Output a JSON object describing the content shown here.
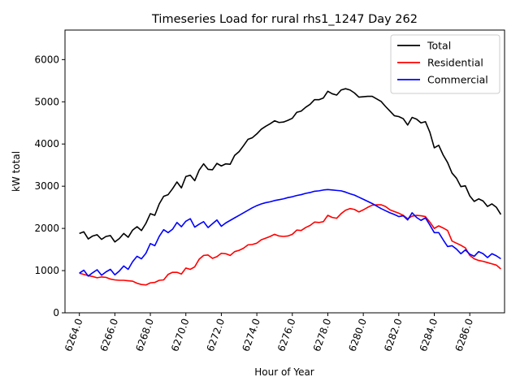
{
  "chart_data": {
    "type": "line",
    "title": "Timeseries Load for rural rhs1_1247  Day 262",
    "xlabel": "Hour of Year",
    "ylabel": "kW total",
    "xlim": [
      6263.19,
      6287.96
    ],
    "ylim": [
      0,
      6700
    ],
    "x_ticks": [
      6264,
      6266,
      6268,
      6270,
      6272,
      6274,
      6276,
      6278,
      6280,
      6282,
      6284,
      6286
    ],
    "x_tick_labels": [
      "6264.0",
      "6266.0",
      "6268.0",
      "6270.0",
      "6272.0",
      "6274.0",
      "6276.0",
      "6278.0",
      "6280.0",
      "6282.0",
      "6284.0",
      "6286.0"
    ],
    "y_ticks": [
      0,
      1000,
      2000,
      3000,
      4000,
      5000,
      6000
    ],
    "y_tick_labels": [
      "0",
      "1000",
      "2000",
      "3000",
      "4000",
      "5000",
      "6000"
    ],
    "grid": false,
    "legend_position": "top-right",
    "x": [
      6264,
      6264.25,
      6264.5,
      6264.75,
      6265,
      6265.25,
      6265.5,
      6265.75,
      6266,
      6266.25,
      6266.5,
      6266.75,
      6267,
      6267.25,
      6267.5,
      6267.75,
      6268,
      6268.25,
      6268.5,
      6268.75,
      6269,
      6269.25,
      6269.5,
      6269.75,
      6270,
      6270.25,
      6270.5,
      6270.75,
      6271,
      6271.25,
      6271.5,
      6271.75,
      6272,
      6272.25,
      6272.5,
      6272.75,
      6273,
      6273.25,
      6273.5,
      6273.75,
      6274,
      6274.25,
      6274.5,
      6274.75,
      6275,
      6275.25,
      6275.5,
      6275.75,
      6276,
      6276.25,
      6276.5,
      6276.75,
      6277,
      6277.25,
      6277.5,
      6277.75,
      6278,
      6278.25,
      6278.5,
      6278.75,
      6279,
      6279.25,
      6279.5,
      6279.75,
      6280,
      6280.25,
      6280.5,
      6280.75,
      6281,
      6281.25,
      6281.5,
      6281.75,
      6282,
      6282.25,
      6282.5,
      6282.75,
      6283,
      6283.25,
      6283.5,
      6283.75,
      6284,
      6284.25,
      6284.5,
      6284.75,
      6285,
      6285.25,
      6285.5,
      6285.75,
      6286,
      6286.25,
      6286.5,
      6286.75,
      6287,
      6287.25,
      6287.5,
      6287.75
    ],
    "series": [
      {
        "name": "Total",
        "color": "#000000",
        "values": [
          1880,
          1920,
          1750,
          1820,
          1850,
          1740,
          1810,
          1830,
          1680,
          1760,
          1880,
          1790,
          1960,
          2040,
          1950,
          2120,
          2350,
          2310,
          2580,
          2760,
          2800,
          2940,
          3100,
          2960,
          3230,
          3260,
          3130,
          3380,
          3530,
          3400,
          3390,
          3540,
          3480,
          3530,
          3520,
          3730,
          3820,
          3960,
          4110,
          4150,
          4240,
          4350,
          4420,
          4480,
          4550,
          4510,
          4520,
          4560,
          4610,
          4750,
          4780,
          4870,
          4940,
          5050,
          5050,
          5090,
          5250,
          5190,
          5160,
          5280,
          5310,
          5280,
          5210,
          5110,
          5120,
          5130,
          5130,
          5070,
          5010,
          4890,
          4780,
          4670,
          4650,
          4600,
          4450,
          4630,
          4590,
          4500,
          4530,
          4280,
          3910,
          3970,
          3740,
          3560,
          3310,
          3190,
          2990,
          3010,
          2770,
          2640,
          2700,
          2650,
          2520,
          2580,
          2500,
          2330
        ]
      },
      {
        "name": "Residential",
        "color": "#ff0000",
        "values": [
          940,
          910,
          880,
          860,
          830,
          850,
          840,
          800,
          780,
          770,
          770,
          760,
          750,
          700,
          670,
          660,
          710,
          720,
          770,
          780,
          910,
          960,
          960,
          920,
          1060,
          1030,
          1090,
          1270,
          1360,
          1370,
          1290,
          1330,
          1410,
          1400,
          1360,
          1450,
          1480,
          1530,
          1610,
          1620,
          1650,
          1730,
          1770,
          1810,
          1860,
          1820,
          1810,
          1820,
          1860,
          1960,
          1950,
          2020,
          2070,
          2150,
          2140,
          2160,
          2310,
          2260,
          2240,
          2350,
          2430,
          2470,
          2450,
          2390,
          2440,
          2500,
          2550,
          2560,
          2560,
          2520,
          2440,
          2400,
          2360,
          2310,
          2230,
          2290,
          2310,
          2300,
          2280,
          2150,
          2000,
          2060,
          2010,
          1950,
          1700,
          1650,
          1600,
          1540,
          1360,
          1280,
          1240,
          1220,
          1190,
          1160,
          1130,
          1040
        ]
      },
      {
        "name": "Commercial",
        "color": "#0000ff",
        "values": [
          940,
          1010,
          870,
          950,
          1020,
          890,
          970,
          1030,
          900,
          990,
          1110,
          1030,
          1210,
          1340,
          1280,
          1410,
          1640,
          1590,
          1810,
          1970,
          1900,
          1980,
          2140,
          2040,
          2170,
          2230,
          2030,
          2100,
          2160,
          2020,
          2110,
          2200,
          2050,
          2130,
          2190,
          2250,
          2310,
          2370,
          2430,
          2490,
          2540,
          2580,
          2610,
          2630,
          2660,
          2680,
          2700,
          2730,
          2750,
          2780,
          2800,
          2830,
          2850,
          2880,
          2890,
          2910,
          2920,
          2910,
          2900,
          2890,
          2860,
          2820,
          2790,
          2740,
          2690,
          2640,
          2590,
          2530,
          2470,
          2420,
          2370,
          2330,
          2280,
          2300,
          2200,
          2370,
          2260,
          2190,
          2250,
          2080,
          1900,
          1900,
          1730,
          1570,
          1590,
          1510,
          1400,
          1490,
          1390,
          1340,
          1450,
          1400,
          1310,
          1400,
          1350,
          1280
        ]
      }
    ]
  }
}
